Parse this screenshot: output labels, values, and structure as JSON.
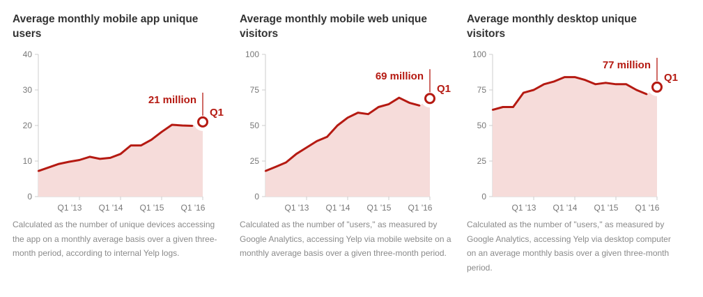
{
  "colors": {
    "line": "#b51a12",
    "area": "#f6dcda",
    "axis": "#cccccc",
    "tick_text": "#777777",
    "annotation": "#b51a12"
  },
  "chart_data": [
    {
      "type": "area",
      "title": "Average monthly mobile app unique users",
      "caption": "Calculated as the number of unique devices accessing the app on a monthly average basis over a given three-month period, according to internal Yelp logs.",
      "ylim": [
        0,
        40
      ],
      "yticks": [
        0,
        10,
        20,
        30,
        40
      ],
      "xticks": [
        "Q1 '13",
        "Q1 '14",
        "Q1 '15",
        "Q1 '16"
      ],
      "xtick_index": [
        4,
        8,
        12,
        16
      ],
      "x_range": [
        0,
        16
      ],
      "annotation": {
        "value_label": "21 million",
        "period_label": "Q1"
      },
      "series": [
        {
          "values": [
            7.2,
            8.2,
            9.2,
            9.8,
            10.3,
            11.2,
            10.6,
            10.9,
            12.0,
            14.4,
            14.4,
            16.0,
            18.2,
            20.2,
            20.0,
            19.9,
            21
          ]
        }
      ]
    },
    {
      "type": "area",
      "title": "Average monthly mobile web unique visitors",
      "caption": "Calculated as the number of \"users,\" as measured by Google Analytics, accessing Yelp via mobile website on a monthly average basis over a given three-month period.",
      "ylim": [
        0,
        100
      ],
      "yticks": [
        0,
        25,
        50,
        75,
        100
      ],
      "xticks": [
        "Q1 '13",
        "Q1 '14",
        "Q1 '15",
        "Q1 '16"
      ],
      "xtick_index": [
        4,
        8,
        12,
        16
      ],
      "x_range": [
        0,
        16
      ],
      "annotation": {
        "value_label": "69 million",
        "period_label": "Q1"
      },
      "series": [
        {
          "values": [
            18,
            21,
            24,
            30,
            34.5,
            39,
            42,
            50,
            55.5,
            59,
            58,
            63,
            65,
            69.5,
            66,
            64,
            69
          ]
        }
      ]
    },
    {
      "type": "area",
      "title": "Average monthly desktop unique visitors",
      "caption": "Calculated as the number of \"users,\" as measured by Google Analytics, accessing Yelp via desktop computer on an average monthly basis over a given three-month period.",
      "ylim": [
        0,
        100
      ],
      "yticks": [
        0,
        25,
        50,
        75,
        100
      ],
      "xticks": [
        "Q1 '13",
        "Q1 '14",
        "Q1 '15",
        "Q1 '16"
      ],
      "xtick_index": [
        4,
        8,
        12,
        16
      ],
      "x_range": [
        0,
        16
      ],
      "annotation": {
        "value_label": "77 million",
        "period_label": "Q1"
      },
      "series": [
        {
          "values": [
            61,
            63,
            63,
            73,
            75,
            79,
            81,
            84,
            84,
            82,
            79,
            80,
            79,
            79,
            75,
            72,
            77
          ]
        }
      ]
    }
  ]
}
